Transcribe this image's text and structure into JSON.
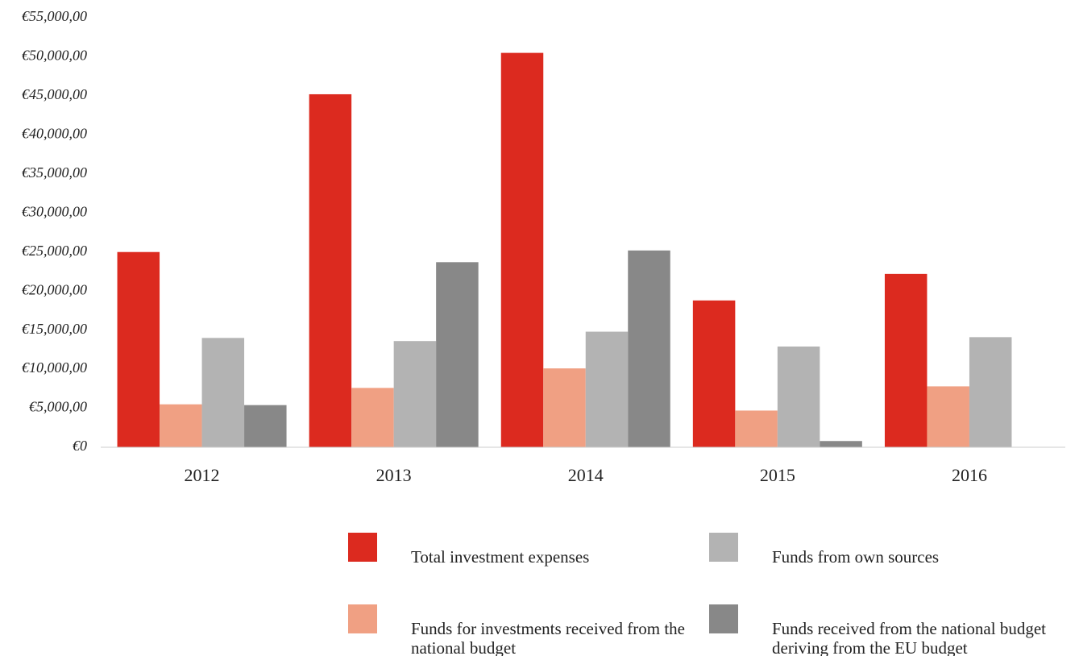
{
  "chart_data": {
    "type": "bar",
    "categories": [
      "2012",
      "2013",
      "2014",
      "2015",
      "2016"
    ],
    "series": [
      {
        "name": "Total investment expenses",
        "color": "#dc2a1f",
        "values": [
          25000,
          45200,
          50500,
          18800,
          22200
        ]
      },
      {
        "name": "Funds for investments received from the national budget",
        "color": "#f0a083",
        "values": [
          5500,
          7600,
          10100,
          4700,
          7800
        ]
      },
      {
        "name": "Funds from own sources",
        "color": "#b3b3b3",
        "values": [
          14000,
          13600,
          14800,
          12900,
          14100
        ]
      },
      {
        "name": "Funds received from the national budget deriving from the EU budget",
        "color": "#888888",
        "values": [
          5400,
          23700,
          25200,
          800,
          null
        ]
      }
    ],
    "ylim": [
      0,
      55000
    ],
    "yticks": [
      {
        "value": 0,
        "label": "€0"
      },
      {
        "value": 5000,
        "label": "€5,000,00"
      },
      {
        "value": 10000,
        "label": "€10,000,00"
      },
      {
        "value": 15000,
        "label": "€15,000,00"
      },
      {
        "value": 20000,
        "label": "€20,000,00"
      },
      {
        "value": 25000,
        "label": "€25,000,00"
      },
      {
        "value": 30000,
        "label": "€30,000,00"
      },
      {
        "value": 35000,
        "label": "€35,000,00"
      },
      {
        "value": 40000,
        "label": "€40,000,00"
      },
      {
        "value": 45000,
        "label": "€45,000,00"
      },
      {
        "value": 50000,
        "label": "€50,000,00"
      },
      {
        "value": 55000,
        "label": "€55,000,00"
      }
    ],
    "grid": false
  }
}
